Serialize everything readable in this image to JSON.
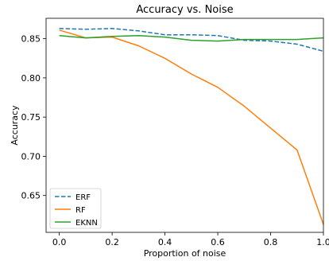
{
  "chart_data": {
    "type": "line",
    "title": "Accuracy vs. Noise",
    "xlabel": "Proportion of noise",
    "ylabel": "Accuracy",
    "xlim": [
      -0.05,
      1.0
    ],
    "ylim": [
      0.603,
      0.876
    ],
    "xticks": [
      "0.0",
      "0.2",
      "0.4",
      "0.6",
      "0.8",
      "1.0"
    ],
    "yticks": [
      "0.65",
      "0.70",
      "0.75",
      "0.80",
      "0.85"
    ],
    "grid": false,
    "legend_position": "lower-left",
    "x": [
      0.0,
      0.1,
      0.2,
      0.3,
      0.4,
      0.5,
      0.6,
      0.7,
      0.8,
      0.9,
      1.0
    ],
    "series": [
      {
        "name": "ERF",
        "color": "#1f77b4",
        "dashed": true,
        "values": [
          0.863,
          0.862,
          0.863,
          0.86,
          0.855,
          0.855,
          0.854,
          0.848,
          0.847,
          0.843,
          0.834
        ]
      },
      {
        "name": "RF",
        "color": "#ff7f0e",
        "dashed": false,
        "values": [
          0.861,
          0.851,
          0.852,
          0.841,
          0.825,
          0.805,
          0.788,
          0.764,
          0.736,
          0.708,
          0.613
        ]
      },
      {
        "name": "EKNN",
        "color": "#2ca02c",
        "dashed": false,
        "values": [
          0.854,
          0.851,
          0.853,
          0.854,
          0.852,
          0.848,
          0.847,
          0.849,
          0.849,
          0.849,
          0.851
        ]
      }
    ]
  }
}
